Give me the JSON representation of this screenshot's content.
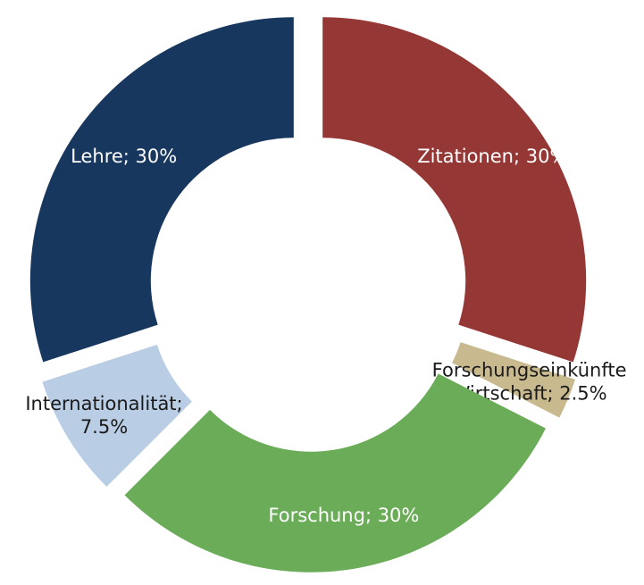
{
  "chart_data": {
    "type": "donut",
    "values": [
      30,
      2.5,
      30,
      7.5,
      30
    ],
    "value_labels": [
      [
        "Zitationen; 30%"
      ],
      [
        "Forschungseinkünfte",
        "Wirtschaft; 2.5%"
      ],
      [
        "Forschung; 30%"
      ],
      [
        "Internationalität;",
        "7.5%"
      ],
      [
        "Lehre; 30%"
      ]
    ],
    "colors": [
      "#953735",
      "#c9b98f",
      "#6aac58",
      "#b9cde5",
      "#17375e"
    ],
    "label_colors": [
      "#ffffff",
      "#1a1a1a",
      "#ffffff",
      "#1a1a1a",
      "#ffffff"
    ]
  }
}
